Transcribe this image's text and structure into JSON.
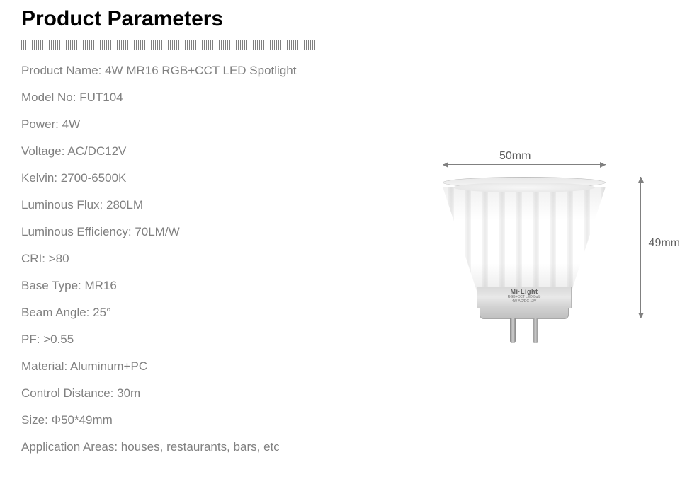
{
  "title": "Product Parameters",
  "specs": [
    {
      "label": "Product Name",
      "value": "4W MR16 RGB+CCT LED Spotlight"
    },
    {
      "label": "Model No",
      "value": "FUT104"
    },
    {
      "label": "Power",
      "value": "4W"
    },
    {
      "label": "Voltage",
      "value": "AC/DC12V"
    },
    {
      "label": "Kelvin",
      "value": "2700-6500K"
    },
    {
      "label": "Luminous Flux",
      "value": "280LM"
    },
    {
      "label": "Luminous Efficiency",
      "value": "70LM/W"
    },
    {
      "label": "CRI",
      "value": ">80"
    },
    {
      "label": "Base Type",
      "value": "MR16"
    },
    {
      "label": "Beam Angle",
      "value": "25°"
    },
    {
      "label": "PF",
      "value": ">0.55"
    },
    {
      "label": "Material",
      "value": "Aluminum+PC"
    },
    {
      "label": "Control Distance",
      "value": "30m"
    },
    {
      "label": "Size",
      "value": "Φ50*49mm"
    },
    {
      "label": "Application Areas",
      "value": "houses, restaurants, bars, etc"
    }
  ],
  "dimensions": {
    "width_label": "50mm",
    "height_label": "49mm"
  },
  "product_label": {
    "brand": "Mi·Light",
    "line1": "RGB+CCT LED Bulb",
    "line2": "4W AC/DC 12V"
  },
  "colors": {
    "title": "#000000",
    "text": "#808080",
    "dim_text": "#606060",
    "background": "#ffffff"
  }
}
